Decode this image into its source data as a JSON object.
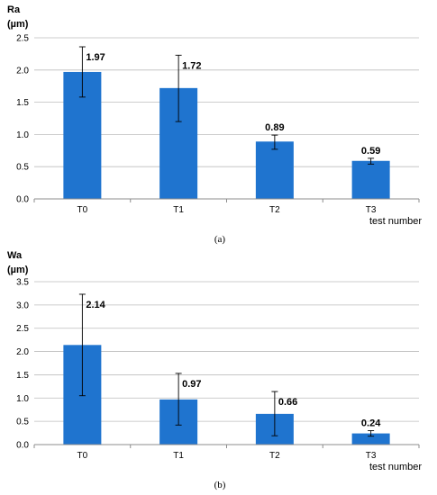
{
  "chart_data": [
    {
      "type": "bar",
      "ylabel_line1": "Ra",
      "ylabel_line2": "(µm)",
      "xlabel": "test number",
      "categories": [
        "T0",
        "T1",
        "T2",
        "T3"
      ],
      "values": [
        1.97,
        1.72,
        0.89,
        0.59
      ],
      "value_labels": [
        "1.97",
        "1.72",
        "0.89",
        "0.59"
      ],
      "error_low": [
        1.58,
        1.2,
        0.77,
        0.54
      ],
      "error_high": [
        2.36,
        2.23,
        0.99,
        0.63
      ],
      "ylim": [
        0,
        2.5
      ],
      "yticks": [
        "0.0",
        "0.5",
        "1.0",
        "1.5",
        "2.0",
        "2.5"
      ],
      "caption": "(a)",
      "bar_color": "#1f74cf"
    },
    {
      "type": "bar",
      "ylabel_line1": "Wa",
      "ylabel_line2": "(µm)",
      "xlabel": "test number",
      "categories": [
        "T0",
        "T1",
        "T2",
        "T3"
      ],
      "values": [
        2.14,
        0.97,
        0.66,
        0.24
      ],
      "value_labels": [
        "2.14",
        "0.97",
        "0.66",
        "0.24"
      ],
      "error_low": [
        1.05,
        0.42,
        0.19,
        0.18
      ],
      "error_high": [
        3.23,
        1.53,
        1.14,
        0.3
      ],
      "ylim": [
        0,
        3.5
      ],
      "yticks": [
        "0.0",
        "0.5",
        "1.0",
        "1.5",
        "2.0",
        "2.5",
        "3.0",
        "3.5"
      ],
      "caption": "(b)",
      "bar_color": "#1f74cf"
    }
  ]
}
